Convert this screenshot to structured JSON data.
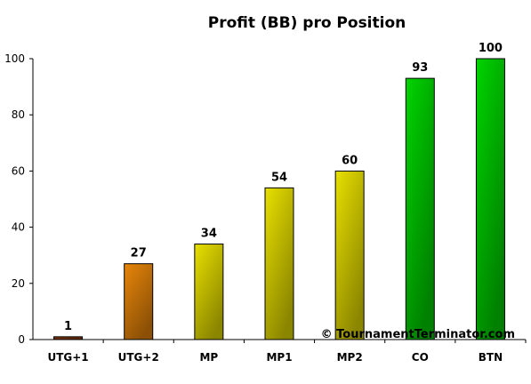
{
  "chart_data": {
    "type": "bar",
    "title": "Profit (BB) pro Position",
    "categories": [
      "UTG+1",
      "UTG+2",
      "MP",
      "MP1",
      "MP2",
      "CO",
      "BTN"
    ],
    "values": [
      1,
      27,
      34,
      54,
      60,
      93,
      100
    ],
    "data_labels": [
      "1",
      "27",
      "34",
      "54",
      "60",
      "93",
      "100"
    ],
    "bar_colors": [
      "#8a3a10",
      "#e8860a",
      "#e8e000",
      "#e8e000",
      "#e8e000",
      "#00d400",
      "#00d400"
    ],
    "ylim": [
      0,
      100
    ],
    "yticks": [
      0,
      20,
      40,
      60,
      80,
      100
    ],
    "xlabel": "",
    "ylabel": "",
    "grid": false,
    "legend": "none"
  },
  "watermark": "© TournamentTerminator.com"
}
